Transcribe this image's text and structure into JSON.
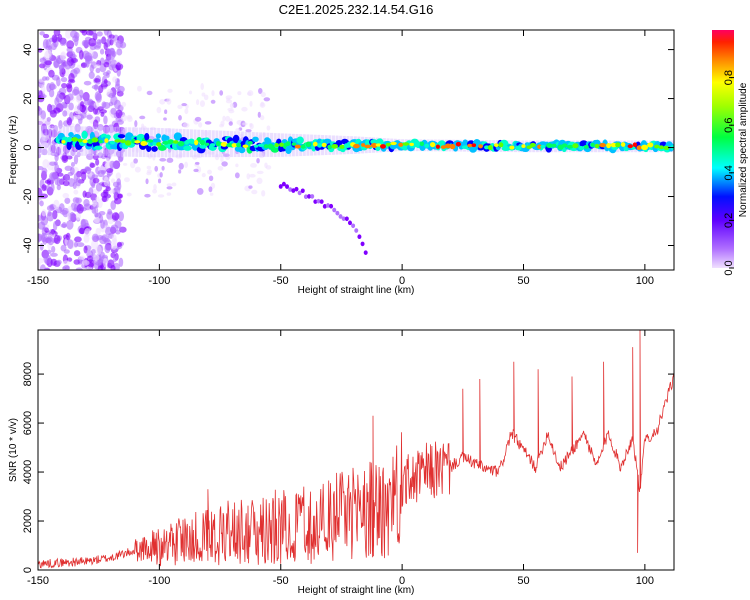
{
  "figure": {
    "title": "C2E1.2025.232.14.54.G16"
  },
  "chart_data": [
    {
      "type": "heatmap",
      "title": "C2E1.2025.232.14.54.G16",
      "xlabel": "Height of straight line (km)",
      "ylabel": "Frequency (Hz)",
      "xlim": [
        -150,
        112
      ],
      "ylim": [
        -50,
        48
      ],
      "xticks": [
        -150,
        -100,
        -50,
        0,
        50,
        100
      ],
      "yticks": [
        -40,
        -20,
        0,
        20,
        40
      ],
      "xtick_labels": [
        "-150",
        "-100",
        "-50",
        "0",
        "50",
        "100"
      ],
      "ytick_labels": [
        "-40",
        "-20",
        "0",
        "20",
        "40"
      ],
      "colorbar": {
        "label": "Normalized spectral amplitude",
        "range": [
          0,
          1
        ],
        "ticks": [
          0.0,
          0.2,
          0.4,
          0.6,
          0.8
        ],
        "tick_labels": [
          "0.0",
          "0.2",
          "0.4",
          "0.6",
          "0.8"
        ],
        "colormap": [
          "#f0e0ff",
          "#8000ff",
          "#0000ff",
          "#00ffff",
          "#00ff00",
          "#ffff00",
          "#ff8000",
          "#ff0000"
        ]
      },
      "ridge": {
        "description": "Main spectral band centered near 0 Hz",
        "height_km": [
          -150,
          -100,
          -50,
          -20,
          0,
          50,
          100,
          112
        ],
        "center_freq_hz": [
          3,
          2,
          1,
          1,
          1,
          0.5,
          0.5,
          0.5
        ],
        "halfwidth_hz": [
          5,
          5,
          4,
          3,
          2,
          2,
          2,
          2
        ]
      },
      "secondary_trace": {
        "height_km": [
          -50,
          -40,
          -30,
          -20,
          -15
        ],
        "freq_hz": [
          -15,
          -19,
          -24,
          -32,
          -42
        ]
      },
      "scatter_region_km": [
        -150,
        -115
      ]
    },
    {
      "type": "line",
      "xlabel": "Height of straight line (km)",
      "ylabel": "SNR (10 * v/v)",
      "xlim": [
        -150,
        112
      ],
      "ylim": [
        0,
        9800
      ],
      "xticks": [
        -150,
        -100,
        -50,
        0,
        50,
        100
      ],
      "yticks": [
        0,
        2000,
        4000,
        6000,
        8000
      ],
      "xtick_labels": [
        "-150",
        "-100",
        "-50",
        "0",
        "50",
        "100"
      ],
      "ytick_labels": [
        "0",
        "2000",
        "4000",
        "6000",
        "8000"
      ],
      "color": "#e03030",
      "series": [
        {
          "name": "SNR",
          "x": [
            -150,
            -140,
            -130,
            -120,
            -110,
            -100,
            -90,
            -80,
            -70,
            -60,
            -50,
            -40,
            -30,
            -20,
            -10,
            0,
            5,
            10,
            20,
            25,
            35,
            40,
            45,
            55,
            60,
            65,
            75,
            80,
            85,
            90,
            95,
            98,
            100,
            105,
            112
          ],
          "y": [
            250,
            300,
            350,
            500,
            800,
            1100,
            1400,
            1650,
            1800,
            1900,
            2100,
            2250,
            2450,
            2650,
            2900,
            3600,
            3700,
            4000,
            4200,
            4600,
            4100,
            4000,
            5600,
            4200,
            5600,
            4150,
            5600,
            4200,
            5600,
            4200,
            5400,
            3200,
            5300,
            5700,
            7900
          ]
        }
      ],
      "spikes": [
        {
          "x": -80,
          "y": 3300
        },
        {
          "x": -12,
          "y": 6300
        },
        {
          "x": 25,
          "y": 7400
        },
        {
          "x": 32,
          "y": 7800
        },
        {
          "x": 46,
          "y": 8500
        },
        {
          "x": 56,
          "y": 8200
        },
        {
          "x": 70,
          "y": 7900
        },
        {
          "x": 83,
          "y": 8500
        },
        {
          "x": 95,
          "y": 9100
        },
        {
          "x": 98,
          "y": 9800
        },
        {
          "x": 97,
          "y": 700
        }
      ]
    }
  ]
}
